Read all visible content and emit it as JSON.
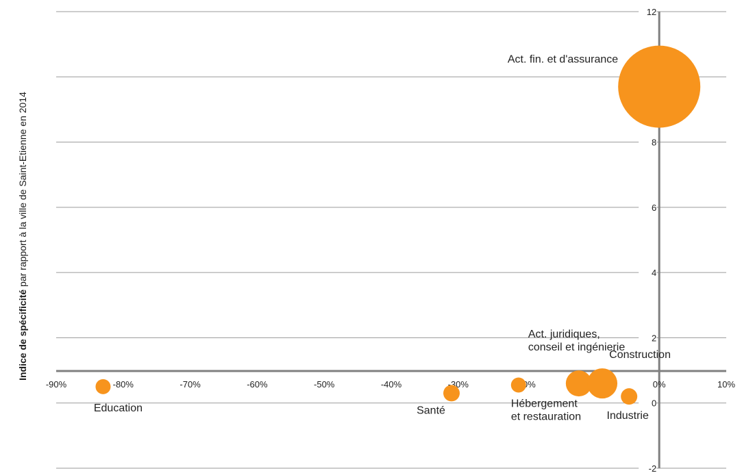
{
  "chart_data": {
    "type": "bubble",
    "ylabel_bold": "Indice de spécificité",
    "ylabel_rest": " par rapport à la ville de Saint-Etienne en 2014",
    "xlim": [
      -90,
      10
    ],
    "ylim": [
      -2,
      12
    ],
    "x_ticks": [
      "-90%",
      "-80%",
      "-70%",
      "-60%",
      "-50%",
      "-40%",
      "-30%",
      "-20%",
      "-10%",
      "0%",
      "10%"
    ],
    "y_ticks": [
      "-2",
      "0",
      "2",
      "4",
      "6",
      "8",
      "10",
      "12"
    ],
    "grid": true,
    "color": "#F7941D",
    "points": [
      {
        "label": "Act. fin. et d'assurance",
        "x": 0,
        "y": 9.7,
        "size": 60
      },
      {
        "label": "Education",
        "x": -83,
        "y": 0.5,
        "size": 11
      },
      {
        "label": "Santé",
        "x": -31,
        "y": 0.3,
        "size": 12
      },
      {
        "label": "Hébergement\net restauration",
        "x": -21,
        "y": 0.55,
        "size": 11
      },
      {
        "label": "Act. juridiques,\nconseil et ingénierie",
        "x": -12,
        "y": 0.6,
        "size": 19
      },
      {
        "label": "Construction",
        "x": -8.5,
        "y": 0.6,
        "size": 22
      },
      {
        "label": "Industrie",
        "x": -4.5,
        "y": 0.2,
        "size": 12
      }
    ]
  }
}
